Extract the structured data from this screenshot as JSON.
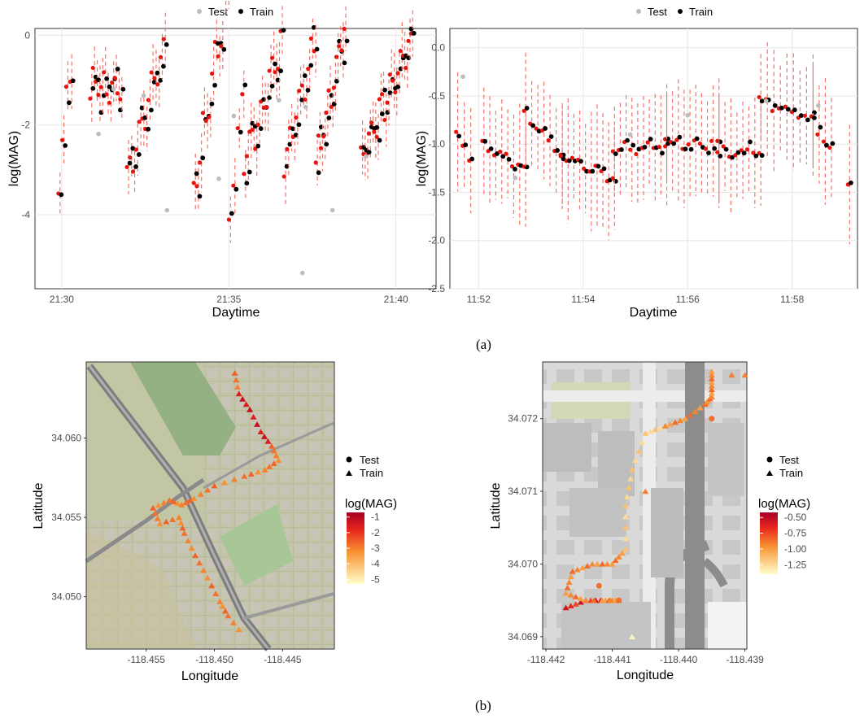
{
  "captions": {
    "a": "(a)",
    "b": "(b)"
  },
  "colors": {
    "test": "#bdbdbd",
    "train": "#000000",
    "pred": "#e8150f",
    "ci": "#f4736a",
    "scale_high": "#a50026",
    "scale_mid_hi": "#e9271d",
    "scale_mid": "#f79232",
    "scale_low": "#ffffcc"
  },
  "chart_data": [
    {
      "type": "scatter",
      "title": "",
      "xlabel": "Daytime",
      "ylabel": "log(MAG)",
      "legend": {
        "placement": "top",
        "entries": [
          "Test",
          "Train"
        ]
      },
      "x_domain_minutes": [
        29.2,
        41.2
      ],
      "ylim": [
        -5.65,
        0.15
      ],
      "xticks": [
        {
          "value": 30,
          "label": "21:30"
        },
        {
          "value": 35,
          "label": "21:35"
        },
        {
          "value": 40,
          "label": "21:40"
        }
      ],
      "yticks": [
        {
          "value": 0,
          "label": "0"
        },
        {
          "value": -2,
          "label": "-2"
        },
        {
          "value": -4,
          "label": "-4"
        }
      ],
      "grid": true,
      "x_unit": "minutes after 21:00",
      "segments": [
        [
          29.95,
          30.3,
          -3.2,
          -0.8,
          4
        ],
        [
          30.9,
          31.8,
          -1.1,
          -1.2,
          12
        ],
        [
          32.0,
          33.1,
          -3.1,
          -0.35,
          13
        ],
        [
          34.0,
          35.0,
          -3.4,
          1.0,
          12
        ],
        [
          35.05,
          35.45,
          -3.8,
          -1.4,
          4
        ],
        [
          35.5,
          36.6,
          -2.8,
          -0.35,
          14
        ],
        [
          36.7,
          37.6,
          -2.9,
          -0.15,
          11
        ],
        [
          37.65,
          38.5,
          -2.9,
          0.2,
          12
        ],
        [
          39.0,
          40.5,
          -2.75,
          -0.1,
          20
        ]
      ],
      "test": [
        [
          31.1,
          -2.2
        ],
        [
          31.55,
          -1.2
        ],
        [
          32.45,
          -1.35
        ],
        [
          33.15,
          -3.9
        ],
        [
          34.7,
          -3.2
        ],
        [
          35.15,
          -1.8
        ],
        [
          36.5,
          -1.45
        ],
        [
          37.2,
          -5.3
        ],
        [
          37.3,
          -1.6
        ],
        [
          38.1,
          -3.9
        ],
        [
          39.1,
          -2.7
        ]
      ],
      "y_hint_test": "scattered near model fit"
    },
    {
      "type": "scatter",
      "title": "",
      "xlabel": "Daytime",
      "ylabel": "log(MAG)",
      "legend": {
        "placement": "top",
        "entries": [
          "Test",
          "Train"
        ]
      },
      "x_domain_minutes": [
        51.45,
        59.25
      ],
      "ylim": [
        -2.5,
        0.2
      ],
      "xticks": [
        {
          "value": 52,
          "label": "11:52"
        },
        {
          "value": 54,
          "label": "11:54"
        },
        {
          "value": 56,
          "label": "11:56"
        },
        {
          "value": 58,
          "label": "11:58"
        }
      ],
      "yticks": [
        {
          "value": 0,
          "label": "0.0"
        },
        {
          "value": -0.5,
          "label": "-0.5"
        },
        {
          "value": -1,
          "label": "-1.0"
        },
        {
          "value": -1.5,
          "label": "-1.5"
        },
        {
          "value": -2,
          "label": "-2.0"
        },
        {
          "value": -2.5,
          "label": "-2.5"
        }
      ],
      "grid": true,
      "x_unit": "minutes after 11:00",
      "segments": [
        [
          51.6,
          51.85,
          -0.95,
          -1.1,
          3
        ],
        [
          52.1,
          52.9,
          -1.0,
          -1.25,
          8
        ],
        [
          52.9,
          53.6,
          -0.7,
          -1.1,
          7
        ],
        [
          53.6,
          54.6,
          -1.1,
          -1.35,
          10
        ],
        [
          54.6,
          55.6,
          -1.05,
          -1.0,
          10
        ],
        [
          55.6,
          56.6,
          -1.0,
          -1.0,
          10
        ],
        [
          56.6,
          57.4,
          -1.1,
          -1.05,
          8
        ],
        [
          57.4,
          58.4,
          -0.55,
          -0.75,
          9
        ],
        [
          58.4,
          58.75,
          -0.75,
          -1.05,
          4
        ],
        [
          59.1,
          59.1,
          -1.45,
          -1.45,
          1
        ]
      ],
      "test": [
        [
          51.7,
          -0.3
        ],
        [
          52.7,
          -1.35
        ],
        [
          54.9,
          -0.9
        ],
        [
          56.0,
          -0.7
        ],
        [
          57.5,
          -0.55
        ],
        [
          58.5,
          -0.6
        ]
      ],
      "y_hint_test": "scattered near model fit"
    },
    {
      "type": "scatter",
      "title": "",
      "xlabel": "Longitude",
      "ylabel": "Latitude",
      "xlim": [
        -118.4594,
        -118.4412
      ],
      "ylim": [
        34.0467,
        34.0648
      ],
      "xticks": [
        {
          "value": -118.455,
          "label": "-118.455"
        },
        {
          "value": -118.45,
          "label": "-118.450"
        },
        {
          "value": -118.445,
          "label": "-118.445"
        }
      ],
      "yticks": [
        {
          "value": 34.05,
          "label": "34.050"
        },
        {
          "value": 34.055,
          "label": "34.055"
        },
        {
          "value": 34.06,
          "label": "34.060"
        }
      ],
      "shape_legend": {
        "entries": [
          "Test",
          "Train"
        ]
      },
      "color_legend": {
        "title": "log(MAG)",
        "range": [
          -5.3,
          -0.7
        ],
        "ticks": [
          {
            "value": -1,
            "label": "-1"
          },
          {
            "value": -2,
            "label": "-2"
          },
          {
            "value": -3,
            "label": "-3"
          },
          {
            "value": -4,
            "label": "-4"
          },
          {
            "value": -5,
            "label": "-5"
          }
        ]
      },
      "track": [
        [
          -118.4485,
          34.0641
        ],
        [
          -118.4482,
          34.0628
        ],
        [
          -118.4474,
          34.0618
        ],
        [
          -118.4466,
          34.0604
        ],
        [
          -118.4458,
          34.0595
        ],
        [
          -118.4453,
          34.0586
        ],
        [
          -118.4463,
          34.058
        ],
        [
          -118.4478,
          34.0576
        ],
        [
          -118.45,
          34.057
        ],
        [
          -118.4515,
          34.0562
        ],
        [
          -118.4524,
          34.0558
        ],
        [
          -118.4533,
          34.0561
        ],
        [
          -118.4545,
          34.0556
        ],
        [
          -118.454,
          34.0546
        ],
        [
          -118.4526,
          34.055
        ],
        [
          -118.4522,
          34.054
        ],
        [
          -118.4514,
          34.0526
        ],
        [
          -118.4505,
          34.0512
        ],
        [
          -118.4496,
          34.0497
        ],
        [
          -118.449,
          34.0488
        ],
        [
          -118.4478,
          34.0475
        ]
      ],
      "train_hint": "triangles along track",
      "test_hint": "circles near track"
    },
    {
      "type": "scatter",
      "title": "",
      "xlabel": "Longitude",
      "ylabel": "Latitude",
      "xlim": [
        -118.44205,
        -118.43897
      ],
      "ylim": [
        34.06883,
        34.07278
      ],
      "xticks": [
        {
          "value": -118.442,
          "label": "-118.442"
        },
        {
          "value": -118.441,
          "label": "-118.441"
        },
        {
          "value": -118.44,
          "label": "-118.440"
        },
        {
          "value": -118.439,
          "label": "-118.439"
        }
      ],
      "yticks": [
        {
          "value": 34.069,
          "label": "34.069"
        },
        {
          "value": 34.07,
          "label": "34.070"
        },
        {
          "value": 34.071,
          "label": "34.071"
        },
        {
          "value": 34.072,
          "label": "34.072"
        }
      ],
      "shape_legend": {
        "entries": [
          "Test",
          "Train"
        ]
      },
      "color_legend": {
        "title": "log(MAG)",
        "range": [
          -1.4,
          -0.42
        ],
        "ticks": [
          {
            "value": -0.5,
            "label": "-0.50"
          },
          {
            "value": -0.75,
            "label": "-0.75"
          },
          {
            "value": -1,
            "label": "-1.00"
          },
          {
            "value": -1.25,
            "label": "-1.25"
          }
        ]
      },
      "track": [
        [
          -118.4417,
          34.0694
        ],
        [
          -118.4414,
          34.0695
        ],
        [
          -118.4411,
          34.0695
        ],
        [
          -118.4409,
          34.0695
        ],
        [
          -118.4414,
          34.0695
        ],
        [
          -118.4417,
          34.0696
        ],
        [
          -118.4416,
          34.0699
        ],
        [
          -118.4413,
          34.07
        ],
        [
          -118.441,
          34.07
        ],
        [
          -118.4408,
          34.0702
        ],
        [
          -118.4408,
          34.0708
        ],
        [
          -118.4407,
          34.0713
        ],
        [
          -118.4405,
          34.0718
        ],
        [
          -118.4402,
          34.0719
        ],
        [
          -118.4399,
          34.072
        ],
        [
          -118.4396,
          34.0722
        ],
        [
          -118.4395,
          34.0723
        ],
        [
          -118.4395,
          34.0725
        ],
        [
          -118.4395,
          34.0727
        ]
      ],
      "test": [
        [
          -118.4395,
          34.072
        ],
        [
          -118.4412,
          34.0697
        ],
        [
          -118.4409,
          34.0695
        ]
      ],
      "extra_train": [
        [
          -118.4392,
          34.0726
        ],
        [
          -118.439,
          34.0726
        ],
        [
          -118.4405,
          34.071
        ],
        [
          -118.4407,
          34.069
        ]
      ]
    }
  ]
}
